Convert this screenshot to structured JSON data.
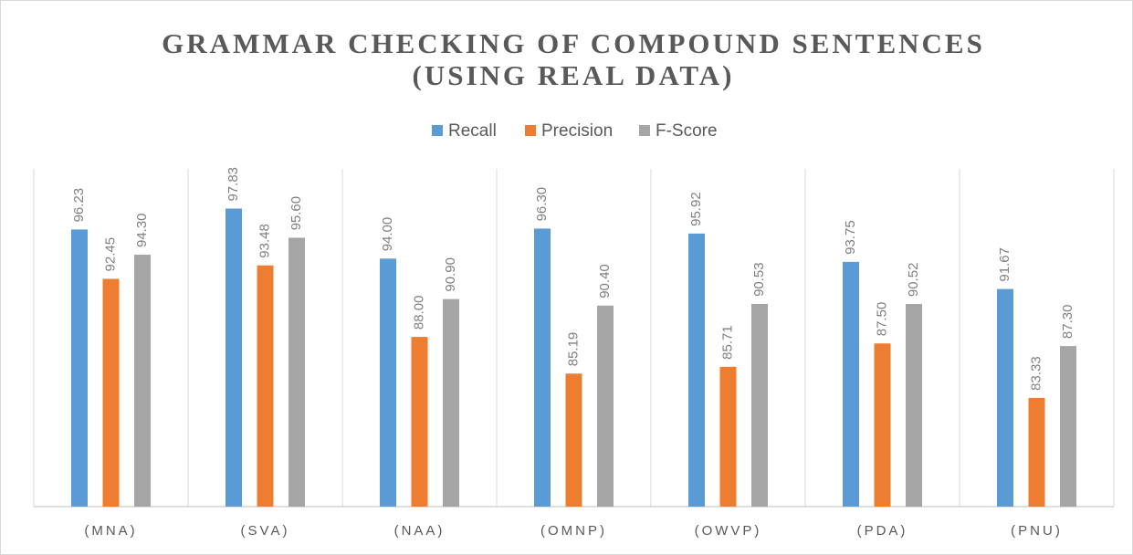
{
  "chart_data": {
    "type": "bar",
    "title": [
      "GRAMMAR CHECKING OF COMPOUND SENTENCES",
      "(USING REAL DATA)"
    ],
    "categories": [
      "(MNA)",
      "(SVA)",
      "(NAA)",
      "(OMNP)",
      "(OWVP)",
      "(PDA)",
      "(PNU)"
    ],
    "series": [
      {
        "name": "Recall",
        "color": "#5b9bd5",
        "values": [
          96.23,
          97.83,
          94,
          96.3,
          95.92,
          93.75,
          91.67
        ],
        "value_labels": [
          "96.23",
          "97.83",
          "94.00",
          "96.30",
          "95.92",
          "93.75",
          "91.67"
        ]
      },
      {
        "name": "Precision",
        "color": "#ed7d31",
        "values": [
          92.45,
          93.48,
          88,
          85.19,
          85.71,
          87.5,
          83.33
        ],
        "value_labels": [
          "92.45",
          "93.48",
          "88.00",
          "85.19",
          "85.71",
          "87.50",
          "83.33"
        ]
      },
      {
        "name": "F-Score",
        "color": "#a5a5a5",
        "values": [
          94.3,
          95.6,
          90.9,
          90.4,
          90.53,
          90.52,
          87.3
        ],
        "value_labels": [
          "94.30",
          "95.60",
          "90.90",
          "90.40",
          "90.53",
          "90.52",
          "87.30"
        ]
      }
    ],
    "ylim": [
      75,
      100
    ],
    "legend": "top"
  }
}
